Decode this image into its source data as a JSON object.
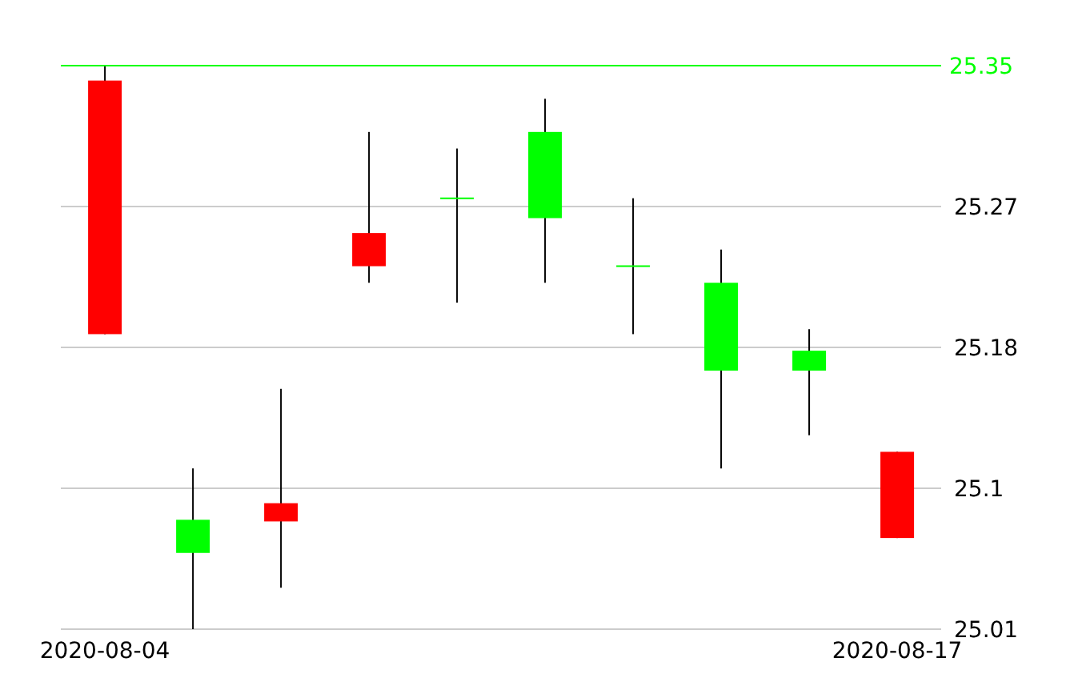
{
  "chart_data": {
    "type": "candlestick",
    "categories": [
      "2020-08-04",
      null,
      null,
      null,
      null,
      null,
      null,
      null,
      null,
      "2020-08-17"
    ],
    "ohlc": [
      [
        25.341,
        25.35,
        25.188,
        25.188
      ],
      [
        25.056,
        25.107,
        25.01,
        25.076
      ],
      [
        25.086,
        25.155,
        25.035,
        25.075
      ],
      [
        25.249,
        25.31,
        25.219,
        25.229
      ],
      [
        25.27,
        25.3,
        25.207,
        25.27
      ],
      [
        25.258,
        25.33,
        25.219,
        25.31
      ],
      [
        25.229,
        25.27,
        25.188,
        25.229
      ],
      [
        25.166,
        25.239,
        25.107,
        25.219
      ],
      [
        25.166,
        25.191,
        25.127,
        25.178
      ],
      [
        25.117,
        25.117,
        25.065,
        25.065
      ]
    ],
    "colors": [
      "#ff0000",
      "#00ff00",
      "#ff0000",
      "#ff0000",
      "#00ff00",
      "#00ff00",
      "#00ff00",
      "#00ff00",
      "#00ff00",
      "#ff0000"
    ],
    "ylim": [
      25.01,
      25.35
    ],
    "yticks": [
      {
        "value": 25.265,
        "label": "25.27"
      },
      25.18,
      {
        "value": 25.095,
        "label": "25.1"
      },
      25.01
    ],
    "ref_lines": [
      {
        "axis": "y",
        "value": 25.35,
        "label": "25.35",
        "color": "#00ff00"
      }
    ],
    "grid": "y"
  }
}
